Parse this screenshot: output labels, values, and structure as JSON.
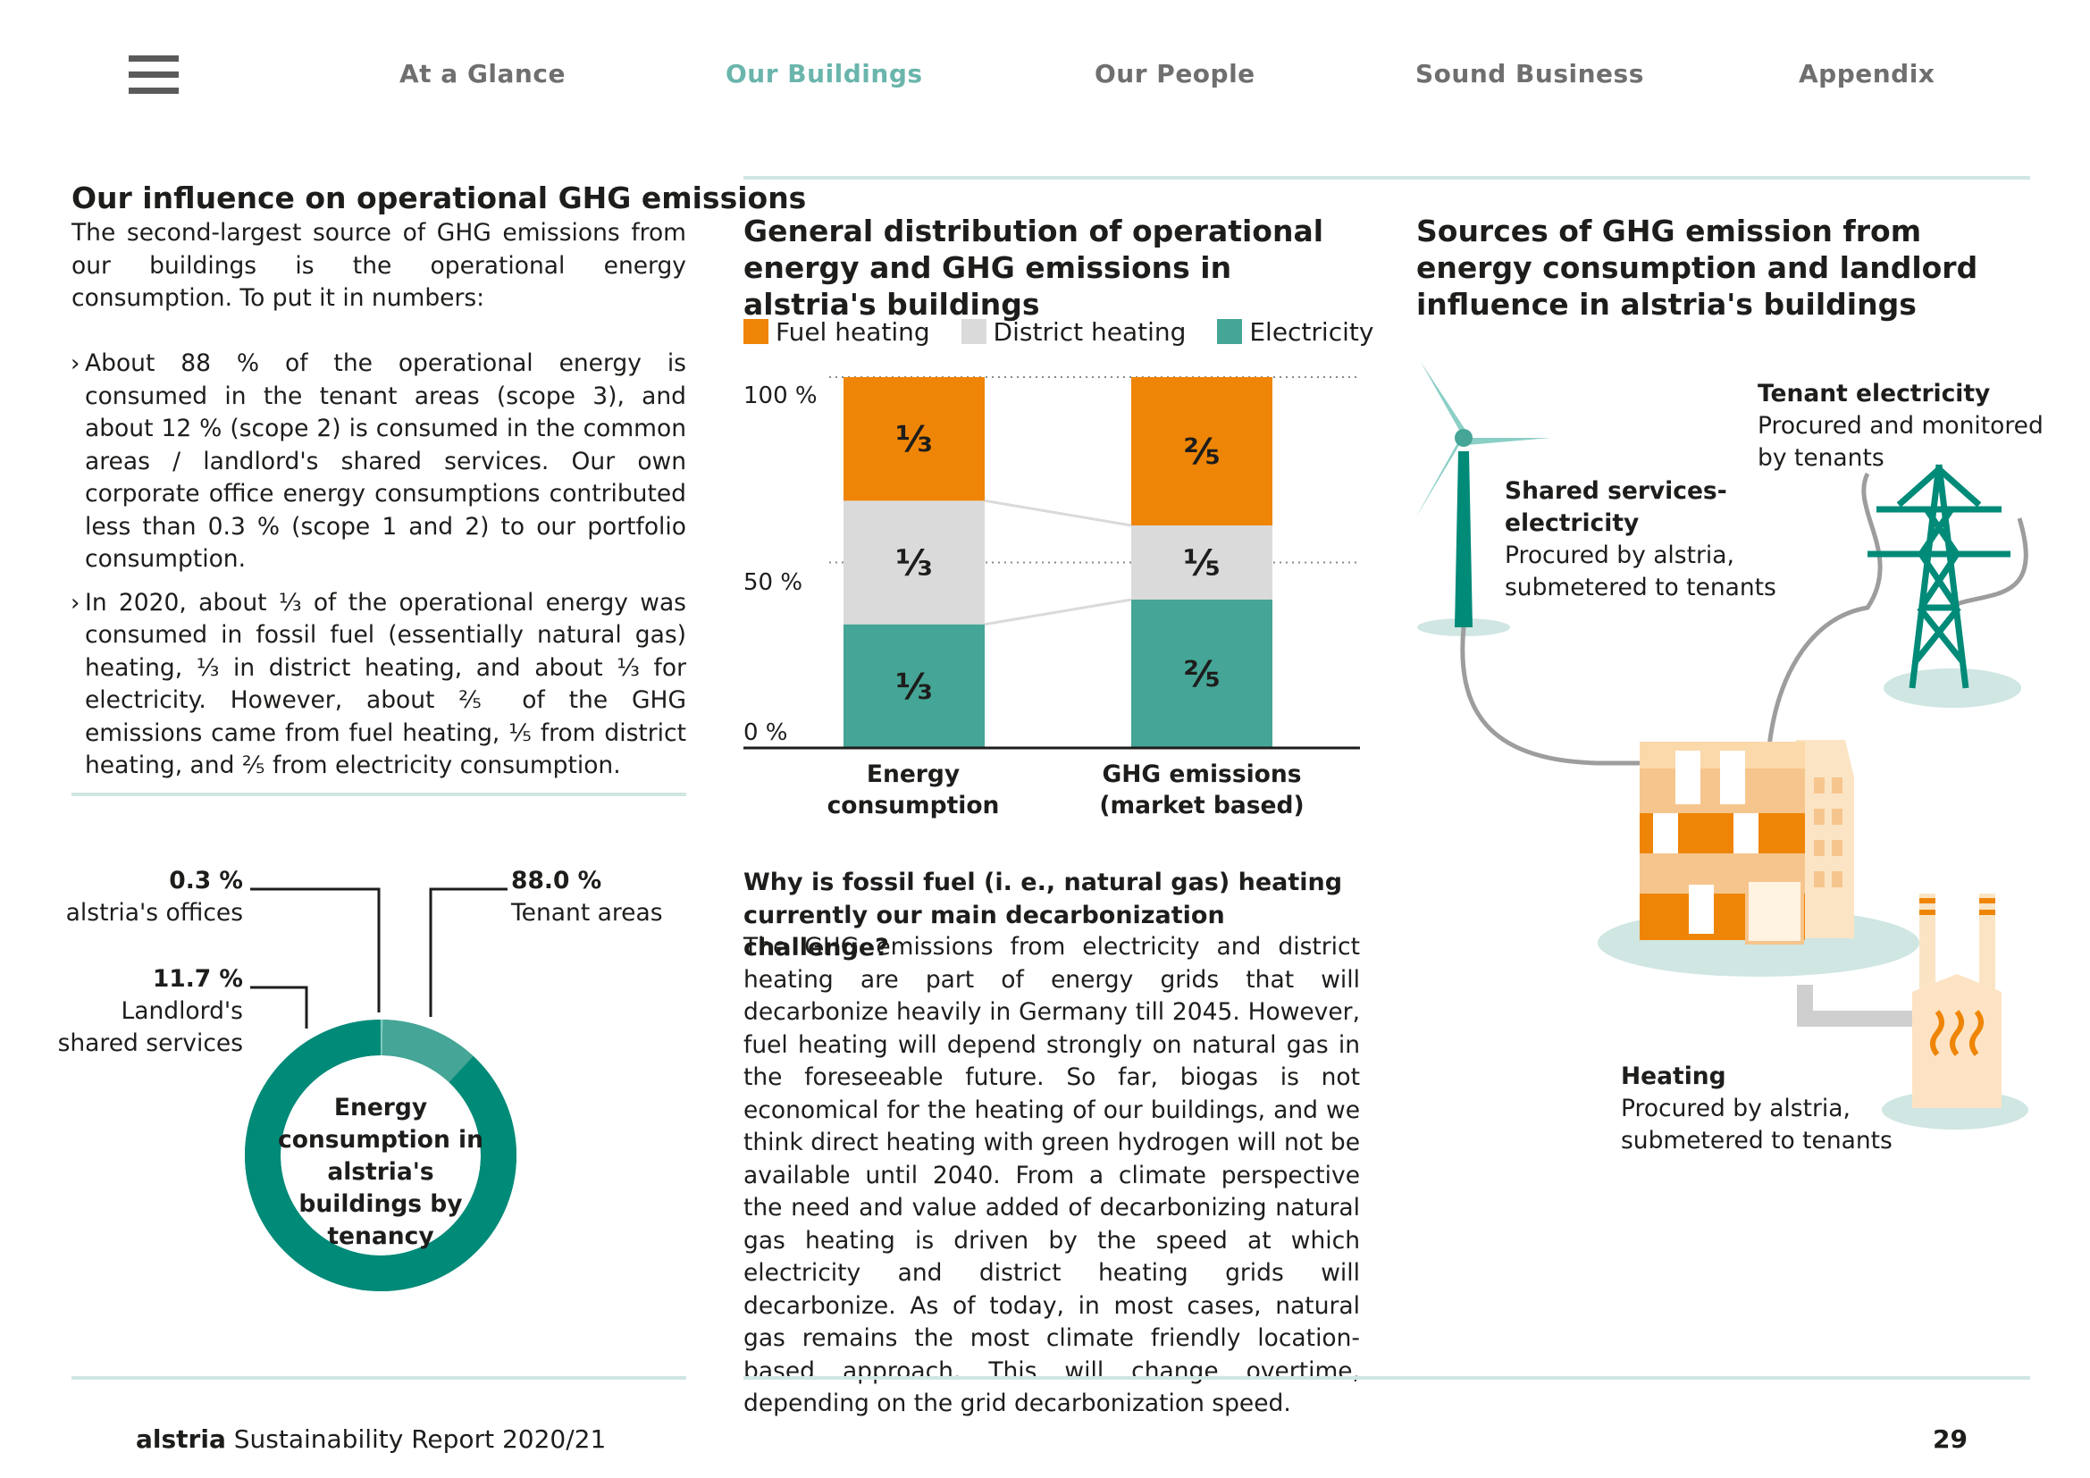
{
  "nav": {
    "items": [
      "At a Glance",
      "Our Buildings",
      "Our People",
      "Sound Business",
      "Appendix"
    ],
    "active_index": 1
  },
  "left": {
    "title": "Our influence on operational GHG emissions",
    "intro": "The second-largest source of GHG emissions from our buildings is the operational energy consumption. To put it in numbers:",
    "bullets": [
      "About 88 % of the operational energy is consumed in the tenant areas (scope 3), and about 12 % (scope 2) is consumed in the common areas / landlord's shared services. Our own corporate office energy consumptions contributed less than 0.3 % (scope 1 and 2) to our portfolio consumption.",
      "In 2020, about ⅓ of the operational energy was consumed in fossil fuel (essentially natural gas) heating, ⅓ in district heating, and about ⅓ for electricity. However, about ⅖ of the GHG emissions came from fuel heating, ⅕ from district heating, and ⅖ from electricity consumption."
    ],
    "bullet_marker": "›"
  },
  "donut": {
    "center_label": "Energy consumption in alstria's buildings by tenancy",
    "segments": [
      {
        "value_label": "0.3 %",
        "name": "alstria's offices",
        "value": 0.3,
        "color": "#7fc8be"
      },
      {
        "value_label": "11.7 %",
        "name": "Landlord's shared services",
        "value": 11.7,
        "color": "#45a596"
      },
      {
        "value_label": "88.0 %",
        "name": "Tenant areas",
        "value": 88.0,
        "color": "#008a78"
      }
    ]
  },
  "chart_data": {
    "type": "bar",
    "stacked": true,
    "title": "General distribution of operational energy and GHG emissions in alstria's buildings",
    "categories": [
      "Energy consumption",
      "GHG emissions (market based)"
    ],
    "series": [
      {
        "name": "Electricity",
        "values": [
          33.3,
          40
        ],
        "labels": [
          "⅓",
          "⅖"
        ],
        "color": "#45a596"
      },
      {
        "name": "District heating",
        "values": [
          33.3,
          20
        ],
        "labels": [
          "⅓",
          "⅕"
        ],
        "color": "#dadada"
      },
      {
        "name": "Fuel heating",
        "values": [
          33.3,
          40
        ],
        "labels": [
          "⅓",
          "⅖"
        ],
        "color": "#ef8506"
      }
    ],
    "legend_order": [
      "Fuel heating",
      "District heating",
      "Electricity"
    ],
    "yticks": [
      "100 %",
      "50 %",
      "0 %"
    ],
    "ylim": [
      0,
      100
    ],
    "grid": "dotted at 50 % and 100 %",
    "legend_position": "top"
  },
  "note": {
    "heading": "Why is fossil fuel (i. e., natural gas) heating currently our main decarbonization challenge?",
    "body": "The GHG emissions from electricity and district heating are part of energy grids that will decarbonize heavily in Germany till 2045. However, fuel heating will depend strongly on natural gas in the foreseeable future. So far, biogas is not economical for the heating of our buildings, and we think direct heating with green hydrogen will not be available until 2040. From a climate perspective the need and value added of decarbonizing natural gas heating is driven by the speed at which electricity and district heating grids will decarbonize. As of today, in most cases, natural gas remains the most climate friendly location-based approach. This will change overtime, depending on the grid decarbonization speed."
  },
  "sources": {
    "title": "Sources of GHG emission from energy consumption and landlord influence in alstria's buildings",
    "shared": {
      "head": "Shared services-electricity",
      "text": "Procured by alstria, submetered to tenants"
    },
    "tenant": {
      "head": "Tenant electricity",
      "text": "Procured and monitored by tenants"
    },
    "heating": {
      "head": "Heating",
      "text": "Procured by alstria, submetered to tenants"
    }
  },
  "footer": {
    "brand": "alstria",
    "report": "Sustainability Report 2020/21",
    "page": "29"
  },
  "colors": {
    "teal_dark": "#008a78",
    "teal": "#45a596",
    "teal_light": "#cfe6e2",
    "orange": "#ef8506",
    "grey": "#dadada",
    "nav_active": "#6ab5ac"
  }
}
